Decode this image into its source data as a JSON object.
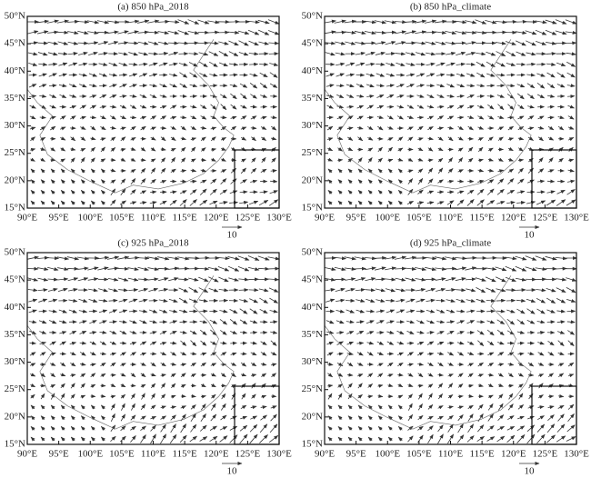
{
  "panels": [
    {
      "title": "(a) 850 hPa_2018",
      "reference_label": "10"
    },
    {
      "title": "(b) 850 hPa_climate",
      "reference_label": "10"
    },
    {
      "title": "(c) 925 hPa_2018",
      "reference_label": "10"
    },
    {
      "title": "(d) 925 hPa_climate",
      "reference_label": "10"
    }
  ],
  "x_axis_labels": [
    "90°E",
    "95°E",
    "100°E",
    "105°E",
    "110°E",
    "115°E",
    "120°E",
    "125°E",
    "130°E"
  ],
  "y_axis_labels": [
    "15°N",
    "20°N",
    "25°N",
    "30°N",
    "35°N",
    "40°N",
    "45°N",
    "50°N"
  ]
}
